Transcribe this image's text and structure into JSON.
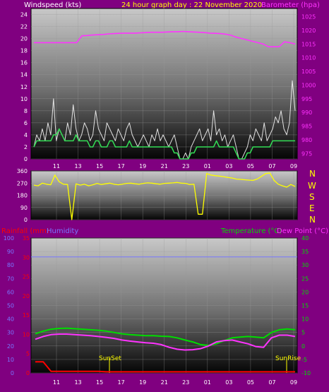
{
  "header": {
    "title": "24 hour graph day : 22 November 2020",
    "left_label": "Windspeed (kts)",
    "right_label": "Barometer (hpa)"
  },
  "colors": {
    "background": "#800080",
    "plot_top": "#c8c8c8",
    "plot_bottom": "#050505",
    "wind_gust": "#ffffff",
    "wind_avg": "#33dd55",
    "barometer": "#ff33ff",
    "direction": "#ffff00",
    "temperature": "#00dd00",
    "dew_point": "#ff33ff",
    "rainfall": "#ff0000",
    "humidity": "#7777ff",
    "axis_text": "#ffffff",
    "title_text": "#ffff00"
  },
  "lower_labels": {
    "rainfall": "Rainfall (mm)",
    "humidity": "Humidity",
    "temperature": "Temperature (°C)",
    "dew_point": "Dew Point (°C)",
    "sunset": "SunSet",
    "sunrise": "SunRise"
  },
  "compass": [
    "N",
    "W",
    "S",
    "E",
    "N"
  ],
  "chart_data": [
    {
      "type": "line",
      "panel": "wind_pressure",
      "x_ticks": [
        "11",
        "13",
        "15",
        "17",
        "19",
        "21",
        "23",
        "01",
        "03",
        "05",
        "07",
        "09"
      ],
      "y_left_ticks": [
        0,
        2,
        4,
        6,
        8,
        10,
        12,
        14,
        16,
        18,
        20,
        22,
        24
      ],
      "y_left_range": [
        0,
        25
      ],
      "y_right_ticks": [
        975,
        980,
        985,
        990,
        995,
        1000,
        1005,
        1010,
        1015,
        1020,
        1025
      ],
      "y_right_range": [
        973,
        1028
      ],
      "series": [
        {
          "name": "Windspeed gust",
          "axis": "left",
          "pattern": "spiky",
          "values": [
            2,
            4,
            3,
            5,
            3,
            6,
            4,
            10,
            3,
            5,
            4,
            3,
            6,
            4,
            9,
            5,
            3,
            4,
            6,
            5,
            3,
            4,
            8,
            5,
            4,
            3,
            6,
            5,
            4,
            3,
            5,
            4,
            3,
            5,
            6,
            4,
            3,
            2,
            3,
            4,
            3,
            2,
            4,
            3,
            5,
            3,
            4,
            3,
            2,
            3,
            4,
            2,
            0,
            0,
            1,
            0,
            2,
            3,
            4,
            5,
            3,
            4,
            5,
            3,
            8,
            4,
            5,
            3,
            4,
            2,
            3,
            4,
            2,
            0,
            0,
            1,
            2,
            4,
            3,
            5,
            4,
            3,
            6,
            3,
            4,
            5,
            7,
            6,
            8,
            5,
            4,
            6,
            13,
            8
          ]
        },
        {
          "name": "Windspeed average",
          "axis": "left",
          "pattern": "smooth",
          "values": [
            2,
            3,
            3,
            3,
            3,
            3,
            3,
            4,
            4,
            5,
            4,
            3,
            3,
            3,
            3,
            4,
            3,
            3,
            3,
            3,
            2,
            2,
            3,
            3,
            2,
            2,
            2,
            3,
            3,
            2,
            2,
            2,
            2,
            2,
            3,
            2,
            2,
            2,
            2,
            2,
            2,
            2,
            2,
            2,
            2,
            2,
            2,
            2,
            2,
            2,
            1,
            1,
            0,
            0,
            0,
            0,
            1,
            1,
            2,
            2,
            2,
            2,
            2,
            2,
            2,
            3,
            2,
            2,
            2,
            2,
            2,
            2,
            1,
            0,
            0,
            0,
            1,
            1,
            2,
            2,
            2,
            2,
            2,
            2,
            2,
            3,
            3,
            3,
            3,
            3,
            3,
            3,
            3,
            3
          ]
        },
        {
          "name": "Barometer",
          "axis": "right",
          "values": [
            1015.5,
            1015.5,
            1015.5,
            1015.5,
            1015.5,
            1015.5,
            1015.5,
            1015.5,
            1015.5,
            1018,
            1018.1,
            1018.3,
            1018.4,
            1018.5,
            1018.7,
            1018.8,
            1018.9,
            1019,
            1019,
            1019,
            1019.1,
            1019.2,
            1019.3,
            1019.3,
            1019.3,
            1019.4,
            1019.5,
            1019.5,
            1019.6,
            1019.5,
            1019.4,
            1019.3,
            1019.2,
            1019,
            1018.9,
            1018.8,
            1018.6,
            1018.2,
            1017.5,
            1017,
            1016.5,
            1016,
            1015.5,
            1015,
            1014,
            1014,
            1014,
            1015.8,
            1015.5,
            1015
          ]
        }
      ]
    },
    {
      "type": "line",
      "panel": "wind_direction",
      "y_ticks": [
        0,
        90,
        180,
        270,
        360
      ],
      "y_range": [
        0,
        360
      ],
      "series": [
        {
          "name": "Wind direction",
          "values": [
            255,
            250,
            270,
            262,
            258,
            330,
            280,
            262,
            260,
            0,
            265,
            255,
            262,
            250,
            258,
            268,
            260,
            265,
            270,
            262,
            258,
            262,
            268,
            270,
            265,
            262,
            268,
            272,
            270,
            265,
            262,
            268,
            270,
            272,
            275,
            270,
            268,
            260,
            262,
            40,
            40,
            340,
            330,
            325,
            322,
            318,
            312,
            308,
            300,
            298,
            295,
            292,
            290,
            300,
            320,
            340,
            345,
            290,
            262,
            250,
            240,
            260,
            245
          ]
        }
      ]
    },
    {
      "type": "line",
      "panel": "temperature",
      "x_ticks": [
        "11",
        "13",
        "15",
        "17",
        "19",
        "21",
        "23",
        "01",
        "03",
        "05",
        "07",
        "09"
      ],
      "y_left_ticks": [
        0,
        10,
        20,
        30,
        40,
        50,
        60,
        70,
        80,
        90,
        100
      ],
      "y_left_range": [
        0,
        100
      ],
      "y_rain_ticks": [
        0,
        5,
        10,
        15,
        20,
        25,
        30,
        35
      ],
      "y_rain_range": [
        0,
        35
      ],
      "y_right_ticks": [
        -10,
        -5,
        0,
        5,
        10,
        15,
        20,
        25,
        30,
        35,
        40
      ],
      "y_right_range": [
        -10,
        40
      ],
      "series": [
        {
          "name": "Temperature",
          "axis": "right",
          "values": [
            4.5,
            5.5,
            6.2,
            6.5,
            6.6,
            6.4,
            6.2,
            6,
            5.8,
            5.5,
            5,
            4.5,
            4.2,
            4,
            3.8,
            3.8,
            3.6,
            3.5,
            3,
            2.2,
            1.5,
            0.5,
            0.2,
            0.8,
            2,
            3,
            3.3,
            3.5,
            3.3,
            3,
            5,
            6,
            6.3,
            6
          ]
        },
        {
          "name": "Dew Point",
          "axis": "right",
          "values": [
            2.5,
            3.5,
            4.2,
            4.4,
            4.4,
            4.2,
            4,
            3.8,
            3.5,
            3.2,
            2.8,
            2.2,
            1.8,
            1.5,
            1.2,
            1,
            0.5,
            -0.5,
            -1.2,
            -1.5,
            -1.4,
            -1,
            0,
            1.5,
            2,
            2.2,
            1.5,
            0.8,
            -0.2,
            -0.5,
            3,
            4,
            4,
            3.5
          ]
        },
        {
          "name": "Humidity",
          "axis": "left",
          "values": [
            86,
            86,
            86,
            86,
            86,
            86,
            86,
            86,
            86,
            86,
            86,
            86,
            86,
            86,
            86,
            86,
            86,
            86,
            86,
            86,
            86,
            86,
            86,
            86,
            86,
            86,
            86,
            86,
            86,
            86,
            86,
            86,
            86,
            86
          ]
        },
        {
          "name": "Rainfall",
          "axis": "rain",
          "values": [
            2.9,
            2.9,
            0.4,
            0.4,
            0.4,
            0.4,
            0.4,
            0.4,
            0.4,
            0.3,
            0.3,
            0.3,
            0.3,
            0.3,
            0.3,
            0.3,
            0.3,
            0.3,
            0.3,
            0.3,
            0.3,
            0.3,
            0.3,
            0.3,
            0.3,
            0.3,
            0.3,
            0.3,
            0.3,
            0.3,
            0.3,
            0.3,
            0.3,
            0.3
          ]
        }
      ]
    }
  ]
}
